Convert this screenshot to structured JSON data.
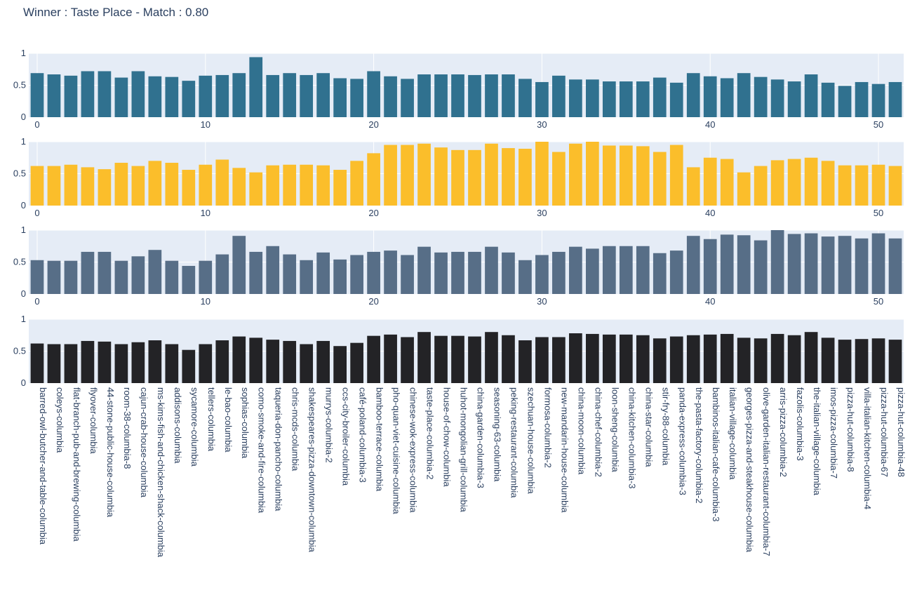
{
  "title": "Winner : Taste Place - Match : 0.80",
  "chart_data": {
    "type": "bar",
    "layout": "4 stacked subplots sharing the x index 0-51",
    "x_index_ticks": [
      "0",
      "10",
      "20",
      "30",
      "40",
      "50"
    ],
    "y_ticks": [
      "0",
      "0.5",
      "1"
    ],
    "ylim": [
      0,
      1
    ],
    "grid": true,
    "categories": [
      "barred-owl-butcher-and-table-columbia",
      "coleys-columbia",
      "flat-branch-pub-and-brewing-columbia",
      "flyover-columbia",
      "44-stone-public-house-columbia",
      "room-38-columbia-8",
      "cajun-crab-house-columbia",
      "ms-kims-fish-and-chicken-shack-columbia",
      "addisons-columbia",
      "sycamore-columbia",
      "tellers-columbia",
      "le-bao-columbia",
      "sophias-columbia",
      "como-smoke-and-fire-columbia",
      "taqueria-don-pancho-columbia",
      "chris-mcds-columbia",
      "shakespeares-pizza-downtown-columbia",
      "murrys-columbia-2",
      "ccs-city-broiler-columbia",
      "café-poland-columbia-3",
      "bamboo-terrace-columbia",
      "pho-quan-viet-cuisine-columbia",
      "chinese-wok-express-columbia",
      "taste-place-columbia-2",
      "house-of-chow-columbia",
      "huhot-mongolian-grill-columbia",
      "china-garden-columbia-3",
      "seasoning-63-columbia",
      "peking-restaurant-columbia",
      "szechuan-house-columbia",
      "formosa-columbia-2",
      "new-mandarin-house-columbia",
      "china-moon-columbia",
      "china-chef-columbia-2",
      "loon-sheng-columbia",
      "china-kitchen-columbia-3",
      "china-star-columbia",
      "stir-fry-88-columbia",
      "panda-express-columbia-3",
      "the-pasta-factory-columbia-2",
      "bambinos-italian-cafe-columbia-3",
      "italian-village-columbia",
      "georges-pizza-and-steakhouse-columbia",
      "olive-garden-italian-restaurant-columbia-7",
      "arris-pizza-columbia-2",
      "fazolis-columbia-3",
      "the-italian-village-columbia",
      "imos-pizza-columbia-7",
      "pizza-hut-columbia-8",
      "villa-italian-kitchen-columbia-4",
      "pizza-hut-columbia-67",
      "pizza-hut-columbia-48"
    ],
    "series": [
      {
        "color": "#30718f",
        "values": [
          0.69,
          0.67,
          0.65,
          0.72,
          0.72,
          0.62,
          0.72,
          0.64,
          0.63,
          0.57,
          0.65,
          0.66,
          0.69,
          0.94,
          0.66,
          0.69,
          0.66,
          0.69,
          0.61,
          0.6,
          0.72,
          0.64,
          0.6,
          0.67,
          0.67,
          0.67,
          0.66,
          0.67,
          0.67,
          0.6,
          0.55,
          0.65,
          0.59,
          0.59,
          0.56,
          0.56,
          0.56,
          0.62,
          0.54,
          0.69,
          0.64,
          0.61,
          0.69,
          0.63,
          0.59,
          0.56,
          0.67,
          0.54,
          0.49,
          0.55,
          0.52,
          0.55
        ]
      },
      {
        "color": "#fbbe2b",
        "values": [
          0.62,
          0.62,
          0.64,
          0.6,
          0.57,
          0.67,
          0.62,
          0.7,
          0.67,
          0.56,
          0.64,
          0.72,
          0.59,
          0.52,
          0.63,
          0.64,
          0.64,
          0.63,
          0.56,
          0.7,
          0.82,
          0.95,
          0.95,
          0.97,
          0.91,
          0.87,
          0.87,
          0.97,
          0.9,
          0.89,
          1.0,
          0.84,
          0.97,
          1.0,
          0.94,
          0.94,
          0.93,
          0.84,
          0.95,
          0.6,
          0.75,
          0.73,
          0.52,
          0.62,
          0.71,
          0.73,
          0.75,
          0.7,
          0.63,
          0.63,
          0.64,
          0.62
        ]
      },
      {
        "color": "#576e87",
        "values": [
          0.53,
          0.52,
          0.52,
          0.66,
          0.66,
          0.52,
          0.59,
          0.69,
          0.52,
          0.44,
          0.52,
          0.62,
          0.91,
          0.66,
          0.75,
          0.62,
          0.53,
          0.65,
          0.54,
          0.61,
          0.66,
          0.68,
          0.61,
          0.74,
          0.65,
          0.66,
          0.66,
          0.74,
          0.65,
          0.53,
          0.61,
          0.66,
          0.74,
          0.71,
          0.75,
          0.75,
          0.75,
          0.64,
          0.68,
          0.91,
          0.86,
          0.93,
          0.92,
          0.84,
          1.0,
          0.94,
          0.95,
          0.9,
          0.91,
          0.87,
          0.95,
          0.87
        ]
      },
      {
        "color": "#232326",
        "values": [
          0.62,
          0.61,
          0.61,
          0.66,
          0.65,
          0.61,
          0.64,
          0.67,
          0.61,
          0.52,
          0.61,
          0.67,
          0.73,
          0.71,
          0.68,
          0.66,
          0.61,
          0.66,
          0.58,
          0.63,
          0.74,
          0.76,
          0.72,
          0.8,
          0.74,
          0.74,
          0.73,
          0.8,
          0.75,
          0.67,
          0.72,
          0.72,
          0.78,
          0.77,
          0.76,
          0.76,
          0.75,
          0.7,
          0.73,
          0.75,
          0.76,
          0.77,
          0.71,
          0.7,
          0.77,
          0.75,
          0.8,
          0.71,
          0.68,
          0.69,
          0.7,
          0.68
        ]
      }
    ]
  }
}
